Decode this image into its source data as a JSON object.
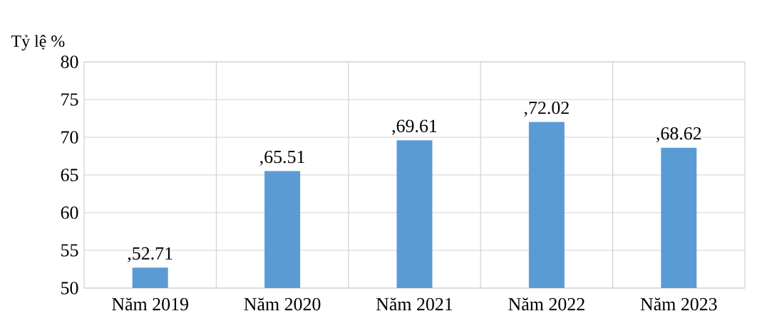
{
  "chart_data": {
    "type": "bar",
    "ylabel": "Tỷ lệ %",
    "categories": [
      "Năm 2019",
      "Năm 2020",
      "Năm 2021",
      "Năm 2022",
      "Năm 2023"
    ],
    "values": [
      52.71,
      65.51,
      69.61,
      72.02,
      68.62
    ],
    "value_labels": [
      ",52.71",
      ",65.51",
      ",69.61",
      ",72.02",
      ",68.62"
    ],
    "color": "#5b9bd5",
    "ylim": [
      50,
      80
    ],
    "yticks": [
      50,
      55,
      60,
      65,
      70,
      75,
      80
    ],
    "grid": true
  }
}
